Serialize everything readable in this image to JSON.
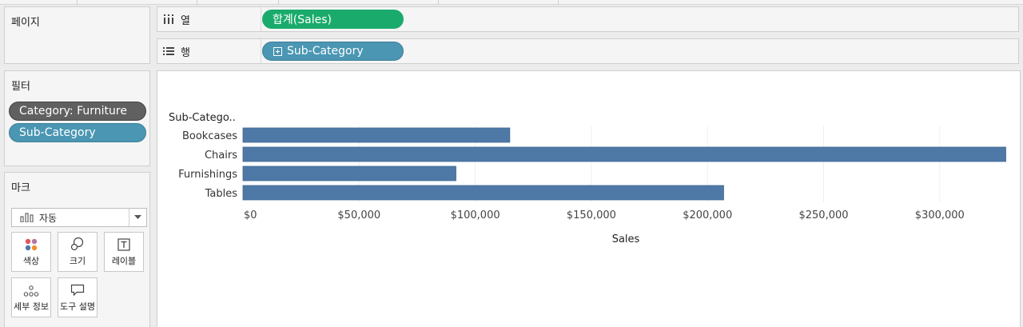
{
  "pages_card": {
    "title": "페이지"
  },
  "columns_shelf": {
    "label": "열",
    "pill": "합계(Sales)"
  },
  "rows_shelf": {
    "label": "행",
    "pill": "Sub-Category"
  },
  "filters_card": {
    "title": "필터",
    "filters": [
      "Category: Furniture",
      "Sub-Category"
    ]
  },
  "marks_card": {
    "title": "마크",
    "mark_type": "자동",
    "buttons": {
      "color": "색상",
      "size": "크기",
      "label": "레이블",
      "detail": "세부 정보",
      "tooltip": "도구 설명"
    }
  },
  "colors": {
    "bar": "#4e79a7",
    "green_pill": "#1aab6c",
    "blue_pill": "#4a96b3",
    "gray_pill": "#606060"
  },
  "chart_data": {
    "type": "bar",
    "orientation": "horizontal",
    "row_header": "Sub-Catego..",
    "categories": [
      "Bookcases",
      "Chairs",
      "Furnishings",
      "Tables"
    ],
    "values": [
      114880,
      328449,
      91705,
      206966
    ],
    "xlabel": "Sales",
    "xticks": [
      0,
      50000,
      100000,
      150000,
      200000,
      250000,
      300000
    ],
    "xtick_labels": [
      "$0",
      "$50,000",
      "$100,000",
      "$150,000",
      "$200,000",
      "$250,000",
      "$300,000"
    ],
    "xlim": [
      0,
      330000
    ],
    "grid": true
  }
}
